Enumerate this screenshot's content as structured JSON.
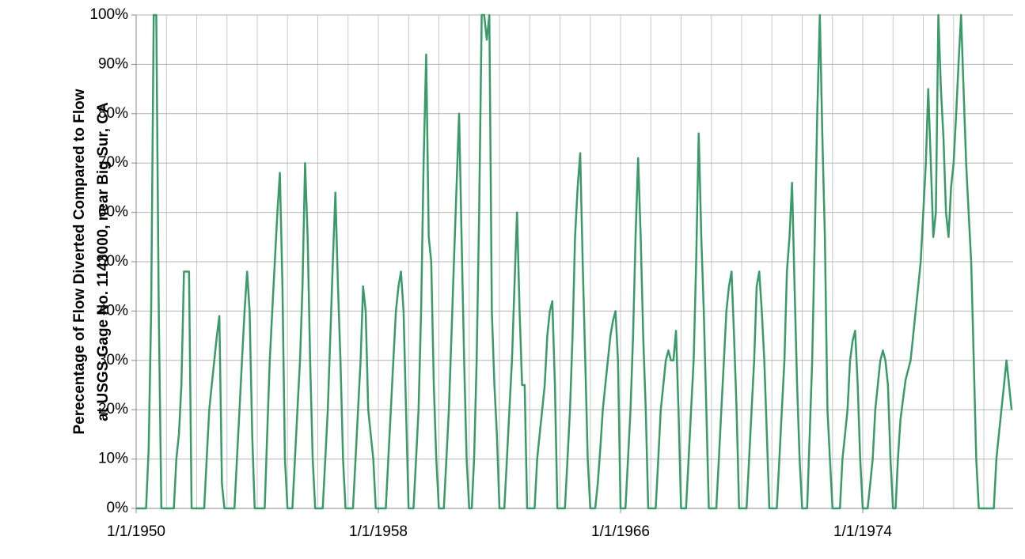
{
  "chart_data": {
    "type": "line",
    "ylabel": [
      "Perecentage of Flow Diverted Compared to Flow",
      "at USGS Gage No. 1143000, near Big Sur, CA"
    ],
    "xlim": [
      "1/1/1950",
      "12/20/1978"
    ],
    "xticks": [
      "1/1/1950",
      "1/1/1958",
      "1/1/1966",
      "1/1/1974"
    ],
    "xgrid": [
      "1/1/1950",
      "1/1/1951",
      "1/1/1952",
      "1/1/1953",
      "1/1/1954",
      "1/1/1955",
      "1/1/1956",
      "1/1/1957",
      "1/1/1958",
      "1/1/1959",
      "1/1/1960",
      "1/1/1961",
      "1/1/1962",
      "1/1/1963",
      "1/1/1964",
      "1/1/1965",
      "1/1/1966",
      "1/1/1967",
      "1/1/1968",
      "1/1/1969",
      "1/1/1970",
      "1/1/1971",
      "1/1/1972",
      "1/1/1973",
      "1/1/1974",
      "1/1/1975",
      "1/1/1976",
      "1/1/1977",
      "1/1/1978"
    ],
    "ylim": [
      0,
      100
    ],
    "yticks": [
      {
        "value": 0,
        "label": "0%"
      },
      {
        "value": 10,
        "label": "10%"
      },
      {
        "value": 20,
        "label": "20%"
      },
      {
        "value": 30,
        "label": "30%"
      },
      {
        "value": 40,
        "label": "40%"
      },
      {
        "value": 50,
        "label": "50%"
      },
      {
        "value": 60,
        "label": "60%"
      },
      {
        "value": 70,
        "label": "70%"
      },
      {
        "value": 80,
        "label": "80%"
      },
      {
        "value": 90,
        "label": "90%"
      },
      {
        "value": 100,
        "label": "100%"
      }
    ],
    "grid": true,
    "x": [
      "1/1/1950",
      "2/1/1950",
      "3/1/1950",
      "4/1/1950",
      "5/1/1950",
      "6/1/1950",
      "7/1/1950",
      "8/1/1950",
      "9/1/1950",
      "10/1/1950",
      "11/1/1950",
      "12/1/1950",
      "1/1/1951",
      "2/1/1951",
      "3/1/1951",
      "4/1/1951",
      "5/1/1951",
      "6/1/1951",
      "7/1/1951",
      "8/1/1951",
      "9/1/1951",
      "10/1/1951",
      "11/1/1951",
      "12/1/1951",
      "1/1/1952",
      "2/1/1952",
      "3/1/1952",
      "4/1/1952",
      "5/1/1952",
      "6/1/1952",
      "7/1/1952",
      "8/1/1952",
      "9/1/1952",
      "10/1/1952",
      "11/1/1952",
      "12/1/1952",
      "1/1/1953",
      "2/1/1953",
      "3/1/1953",
      "4/1/1953",
      "5/1/1953",
      "6/1/1953",
      "7/1/1953",
      "8/1/1953",
      "9/1/1953",
      "10/1/1953",
      "11/1/1953",
      "12/1/1953",
      "1/1/1954",
      "2/1/1954",
      "3/1/1954",
      "4/1/1954",
      "5/1/1954",
      "6/1/1954",
      "7/1/1954",
      "8/1/1954",
      "9/1/1954",
      "10/1/1954",
      "11/1/1954",
      "12/1/1954",
      "1/1/1955",
      "2/1/1955",
      "3/1/1955",
      "4/1/1955",
      "5/1/1955",
      "6/1/1955",
      "7/1/1955",
      "8/1/1955",
      "9/1/1955",
      "10/1/1955",
      "11/1/1955",
      "12/1/1955",
      "1/1/1956",
      "2/1/1956",
      "3/1/1956",
      "4/1/1956",
      "5/1/1956",
      "6/1/1956",
      "7/1/1956",
      "8/1/1956",
      "9/1/1956",
      "10/1/1956",
      "11/1/1956",
      "12/1/1956",
      "1/1/1957",
      "2/1/1957",
      "3/1/1957",
      "4/1/1957",
      "5/1/1957",
      "6/1/1957",
      "7/1/1957",
      "8/1/1957",
      "9/1/1957",
      "10/1/1957",
      "11/1/1957",
      "12/1/1957",
      "1/1/1958",
      "2/1/1958",
      "3/1/1958",
      "4/1/1958",
      "5/1/1958",
      "6/1/1958",
      "7/1/1958",
      "8/1/1958",
      "9/1/1958",
      "10/1/1958",
      "11/1/1958",
      "12/1/1958",
      "1/1/1959",
      "2/1/1959",
      "3/1/1959",
      "4/1/1959",
      "5/1/1959",
      "6/1/1959",
      "7/1/1959",
      "8/1/1959",
      "9/1/1959",
      "10/1/1959",
      "11/1/1959",
      "12/1/1959",
      "1/1/1960",
      "2/1/1960",
      "3/1/1960",
      "4/1/1960",
      "5/1/1960",
      "6/1/1960",
      "7/1/1960",
      "8/1/1960",
      "9/1/1960",
      "10/1/1960",
      "11/1/1960",
      "12/1/1960",
      "1/1/1961",
      "2/1/1961",
      "3/1/1961",
      "4/1/1961",
      "5/1/1961",
      "6/1/1961",
      "7/1/1961",
      "8/1/1961",
      "9/1/1961",
      "10/1/1961",
      "11/1/1961",
      "12/1/1961",
      "1/1/1962",
      "2/1/1962",
      "3/1/1962",
      "4/1/1962",
      "5/1/1962",
      "6/1/1962",
      "7/1/1962",
      "8/1/1962",
      "9/1/1962",
      "10/1/1962",
      "11/1/1962",
      "12/1/1962",
      "1/1/1963",
      "2/1/1963",
      "3/1/1963",
      "4/1/1963",
      "5/1/1963",
      "6/1/1963",
      "7/1/1963",
      "8/1/1963",
      "9/1/1963",
      "10/1/1963",
      "11/1/1963",
      "12/1/1963",
      "1/1/1964",
      "2/1/1964",
      "3/1/1964",
      "4/1/1964",
      "5/1/1964",
      "6/1/1964",
      "7/1/1964",
      "8/1/1964",
      "9/1/1964",
      "10/1/1964",
      "11/1/1964",
      "12/1/1964",
      "1/1/1965",
      "2/1/1965",
      "3/1/1965",
      "4/1/1965",
      "5/1/1965",
      "6/1/1965",
      "7/1/1965",
      "8/1/1965",
      "9/1/1965",
      "10/1/1965",
      "11/1/1965",
      "12/1/1965",
      "1/1/1966",
      "2/1/1966",
      "3/1/1966",
      "4/1/1966",
      "5/1/1966",
      "6/1/1966",
      "7/1/1966",
      "8/1/1966",
      "9/1/1966",
      "10/1/1966",
      "11/1/1966",
      "12/1/1966",
      "1/1/1967",
      "2/1/1967",
      "3/1/1967",
      "4/1/1967",
      "5/1/1967",
      "6/1/1967",
      "7/1/1967",
      "8/1/1967",
      "9/1/1967",
      "10/1/1967",
      "11/1/1967",
      "12/1/1967",
      "1/1/1968",
      "2/1/1968",
      "3/1/1968",
      "4/1/1968",
      "5/1/1968",
      "6/1/1968",
      "7/1/1968",
      "8/1/1968",
      "9/1/1968",
      "10/1/1968",
      "11/1/1968",
      "12/1/1968",
      "1/1/1969",
      "2/1/1969",
      "3/1/1969",
      "4/1/1969",
      "5/1/1969",
      "6/1/1969",
      "7/1/1969",
      "8/1/1969",
      "9/1/1969",
      "10/1/1969",
      "11/1/1969",
      "12/1/1969",
      "1/1/1970",
      "2/1/1970",
      "3/1/1970",
      "4/1/1970",
      "5/1/1970",
      "6/1/1970",
      "7/1/1970",
      "8/1/1970",
      "9/1/1970",
      "10/1/1970",
      "11/1/1970",
      "12/1/1970",
      "1/1/1971",
      "2/1/1971",
      "3/1/1971",
      "4/1/1971",
      "5/1/1971",
      "6/1/1971",
      "7/1/1971",
      "8/1/1971",
      "9/1/1971",
      "10/1/1971",
      "11/1/1971",
      "12/1/1971",
      "1/1/1972",
      "2/1/1972",
      "3/1/1972",
      "4/1/1972",
      "5/1/1972",
      "6/1/1972",
      "7/1/1972",
      "8/1/1972",
      "9/1/1972",
      "10/1/1972",
      "11/1/1972",
      "12/1/1972",
      "1/1/1973",
      "2/1/1973",
      "3/1/1973",
      "4/1/1973",
      "5/1/1973",
      "6/1/1973",
      "7/1/1973",
      "8/1/1973",
      "9/1/1973",
      "10/1/1973",
      "11/1/1973",
      "12/1/1973",
      "1/1/1974",
      "2/1/1974",
      "3/1/1974",
      "4/1/1974",
      "5/1/1974",
      "6/1/1974",
      "7/1/1974",
      "8/1/1974",
      "9/1/1974",
      "10/1/1974",
      "11/1/1974",
      "12/1/1974",
      "1/1/1975",
      "2/1/1975",
      "3/1/1975",
      "4/1/1975",
      "5/1/1975",
      "6/1/1975",
      "7/1/1975",
      "8/1/1975",
      "9/1/1975",
      "10/1/1975",
      "11/1/1975",
      "12/1/1975",
      "1/1/1976",
      "2/1/1976",
      "3/1/1976",
      "4/1/1976",
      "5/1/1976",
      "6/1/1976",
      "7/1/1976",
      "8/1/1976",
      "9/1/1976",
      "10/1/1976",
      "11/1/1976",
      "12/1/1976",
      "1/1/1977",
      "2/1/1977",
      "3/1/1977",
      "4/1/1977",
      "5/1/1977",
      "6/1/1977",
      "7/1/1977",
      "8/1/1977",
      "9/1/1977",
      "10/1/1977",
      "11/1/1977",
      "12/1/1977",
      "1/1/1978",
      "2/1/1978",
      "3/1/1978",
      "4/1/1978",
      "5/1/1978",
      "6/1/1978",
      "7/1/1978",
      "8/1/1978",
      "9/1/1978",
      "10/1/1978",
      "11/1/1978",
      "12/1/1978"
    ],
    "series": [
      {
        "color": "#3a9a68",
        "values": [
          0,
          0,
          0,
          0,
          0,
          12,
          40,
          100,
          100,
          40,
          0,
          0,
          0,
          0,
          0,
          0,
          10,
          15,
          25,
          48,
          48,
          48,
          0,
          0,
          0,
          0,
          0,
          0,
          10,
          20,
          25,
          30,
          35,
          39,
          5,
          0,
          0,
          0,
          0,
          0,
          10,
          20,
          30,
          40,
          48,
          40,
          15,
          0,
          0,
          0,
          0,
          0,
          15,
          30,
          40,
          50,
          60,
          68,
          45,
          10,
          0,
          0,
          0,
          10,
          20,
          30,
          45,
          70,
          55,
          30,
          10,
          0,
          0,
          0,
          0,
          10,
          20,
          35,
          50,
          64,
          45,
          30,
          10,
          0,
          0,
          0,
          0,
          10,
          20,
          30,
          45,
          40,
          20,
          15,
          10,
          0,
          0,
          0,
          0,
          0,
          10,
          20,
          30,
          40,
          45,
          48,
          40,
          20,
          0,
          0,
          0,
          10,
          20,
          40,
          70,
          92,
          55,
          50,
          25,
          10,
          0,
          0,
          0,
          10,
          20,
          35,
          50,
          65,
          80,
          55,
          30,
          10,
          0,
          0,
          10,
          30,
          60,
          100,
          100,
          95,
          100,
          40,
          25,
          15,
          0,
          0,
          0,
          10,
          20,
          30,
          45,
          60,
          40,
          25,
          25,
          0,
          0,
          0,
          0,
          10,
          15,
          20,
          25,
          35,
          40,
          42,
          25,
          0,
          0,
          0,
          0,
          10,
          20,
          35,
          55,
          65,
          72,
          50,
          30,
          10,
          0,
          0,
          0,
          5,
          12,
          20,
          25,
          30,
          35,
          38,
          40,
          30,
          0,
          0,
          0,
          10,
          20,
          35,
          55,
          71,
          55,
          35,
          20,
          0,
          0,
          0,
          0,
          10,
          20,
          25,
          30,
          32,
          30,
          30,
          36,
          20,
          0,
          0,
          0,
          10,
          20,
          30,
          50,
          76,
          55,
          40,
          20,
          0,
          0,
          0,
          0,
          10,
          20,
          30,
          40,
          45,
          48,
          35,
          20,
          0,
          0,
          0,
          0,
          10,
          20,
          30,
          45,
          48,
          40,
          30,
          15,
          0,
          0,
          0,
          0,
          10,
          20,
          30,
          48,
          55,
          66,
          45,
          25,
          10,
          0,
          0,
          0,
          15,
          30,
          55,
          80,
          100,
          75,
          55,
          20,
          10,
          0,
          0,
          0,
          0,
          10,
          15,
          20,
          30,
          34,
          36,
          25,
          10,
          0,
          0,
          0,
          5,
          10,
          20,
          25,
          30,
          32,
          30,
          25,
          10,
          0,
          0,
          10,
          18,
          22,
          26,
          28,
          30,
          35,
          40,
          45,
          50,
          60,
          70,
          85,
          70,
          55,
          60,
          100,
          85,
          75,
          60,
          55,
          65,
          70,
          80,
          90,
          100,
          85,
          70,
          60,
          50,
          30,
          10,
          0,
          0,
          0,
          0,
          0,
          0,
          0,
          10,
          15,
          20,
          25,
          30,
          25,
          20
        ]
      }
    ]
  }
}
